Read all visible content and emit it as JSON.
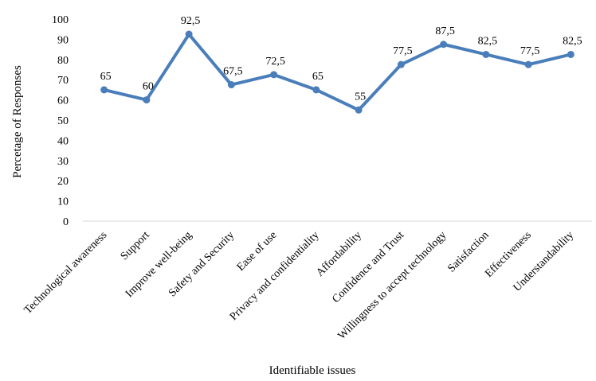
{
  "chart_data": {
    "type": "line",
    "title": "",
    "xlabel": "Identifiable issues",
    "ylabel": "Percetage of Responses",
    "ylim": [
      0,
      100
    ],
    "ytick_step": 10,
    "yticks": [
      "0",
      "10",
      "20",
      "30",
      "40",
      "50",
      "60",
      "70",
      "80",
      "90",
      "100"
    ],
    "grid": false,
    "legend": "none",
    "line_color": "#4A7EBB",
    "categories": [
      "Technological awareness",
      "Support",
      "Improve well-being",
      "Safety and Security",
      "Ease of use",
      "Privacy and confidentiality",
      "Affordability",
      "Confidence and Trust",
      "Willingness to accept technology",
      "Satisfaction",
      "Effectiveness",
      "Understandability"
    ],
    "values": [
      65,
      60,
      92.5,
      67.5,
      72.5,
      65,
      55,
      77.5,
      87.5,
      82.5,
      77.5,
      82.5
    ],
    "value_labels": [
      "65",
      "60",
      "92,5",
      "67,5",
      "72,5",
      "65",
      "55",
      "77,5",
      "87,5",
      "82,5",
      "77,5",
      "82,5"
    ]
  }
}
